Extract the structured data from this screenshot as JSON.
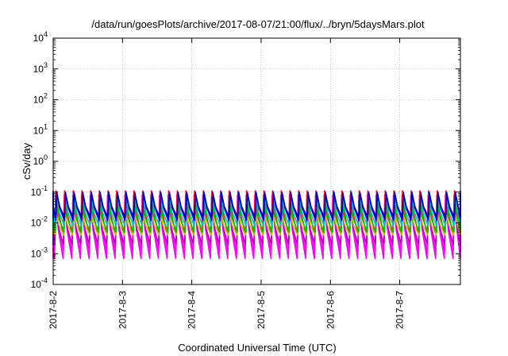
{
  "chart_data": {
    "type": "line",
    "title": "/data/run/goesPlots/archive/2017-08-07/21:00/flux/../bryn/5daysMars.plot",
    "xlabel": "Coordinated Universal Time (UTC)",
    "ylabel": "cSv/day",
    "yscale": "log",
    "ylim": [
      0.0001,
      10000
    ],
    "xlim": [
      "2017-08-02",
      "2017-08-07 21:00"
    ],
    "grid": true,
    "x_ticks": [
      "2017-8-2",
      "2017-8-3",
      "2017-8-4",
      "2017-8-5",
      "2017-8-6",
      "2017-8-7"
    ],
    "y_ticks": [
      {
        "base": "10",
        "exp": "-4"
      },
      {
        "base": "10",
        "exp": "-3"
      },
      {
        "base": "10",
        "exp": "-2"
      },
      {
        "base": "10",
        "exp": "-1"
      },
      {
        "base": "10",
        "exp": "0"
      },
      {
        "base": "10",
        "exp": "1"
      },
      {
        "base": "10",
        "exp": "2"
      },
      {
        "base": "10",
        "exp": "3"
      },
      {
        "base": "10",
        "exp": "4"
      }
    ],
    "cycles_per_day": 8,
    "series": [
      {
        "color": "#ff00ff",
        "peak": 0.08,
        "trough": 0.0007
      },
      {
        "color": "#ff00ff",
        "peak": 0.05,
        "trough": 0.0012
      },
      {
        "color": "#b000b0",
        "peak": 0.03,
        "trough": 0.002
      },
      {
        "color": "#ff0000",
        "peak": 0.11,
        "trough": 0.004
      },
      {
        "color": "#c0c000",
        "peak": 0.02,
        "trough": 0.004
      },
      {
        "color": "#00c000",
        "peak": 0.04,
        "trough": 0.005
      },
      {
        "color": "#00c0c0",
        "peak": 0.07,
        "trough": 0.008
      },
      {
        "color": "#0000ff",
        "peak": 0.1,
        "trough": 0.012
      },
      {
        "color": "#0000aa",
        "peak": 0.09,
        "trough": 0.015
      }
    ]
  }
}
